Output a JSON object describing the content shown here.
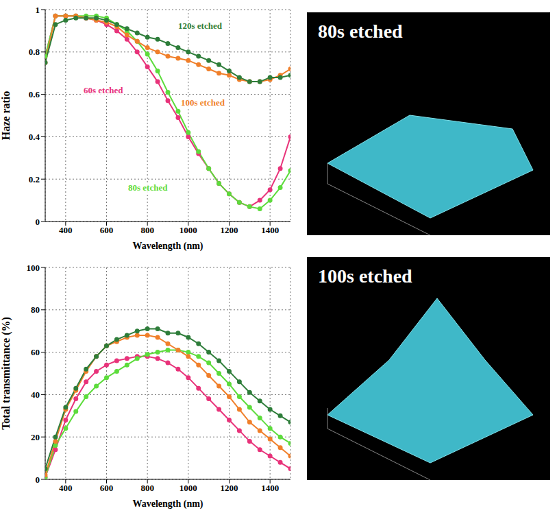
{
  "chart_data": [
    {
      "type": "line",
      "y_label": "Haze ratio",
      "x_label": "Wavelength (nm)",
      "x": [
        300,
        350,
        400,
        450,
        500,
        550,
        600,
        650,
        700,
        750,
        800,
        850,
        900,
        950,
        1000,
        1050,
        1100,
        1150,
        1200,
        1250,
        1300,
        1350,
        1400,
        1450,
        1500
      ],
      "xlim": [
        300,
        1500
      ],
      "xticks": [
        400,
        600,
        800,
        1000,
        1200,
        1400
      ],
      "ylim": [
        0,
        1
      ],
      "yticks": [
        0,
        0.2,
        0.4,
        0.6,
        0.8,
        1
      ],
      "grid": true,
      "series": [
        {
          "name": "60s etched",
          "color": "#e8337a",
          "marker": "circle",
          "values": [
            0.78,
            0.97,
            0.97,
            0.97,
            0.96,
            0.95,
            0.93,
            0.9,
            0.86,
            0.8,
            0.73,
            0.66,
            0.57,
            0.49,
            0.4,
            0.32,
            0.25,
            0.18,
            0.13,
            0.09,
            0.07,
            0.1,
            0.15,
            0.25,
            0.4
          ]
        },
        {
          "name": "80s etched",
          "color": "#5ddc3c",
          "marker": "circle",
          "values": [
            0.78,
            0.97,
            0.97,
            0.97,
            0.97,
            0.97,
            0.96,
            0.93,
            0.9,
            0.85,
            0.79,
            0.71,
            0.61,
            0.52,
            0.42,
            0.33,
            0.25,
            0.18,
            0.13,
            0.09,
            0.07,
            0.06,
            0.1,
            0.16,
            0.24
          ]
        },
        {
          "name": "100s etched",
          "color": "#f07f2a",
          "marker": "circle",
          "values": [
            0.75,
            0.97,
            0.97,
            0.97,
            0.96,
            0.95,
            0.94,
            0.92,
            0.88,
            0.85,
            0.82,
            0.8,
            0.78,
            0.77,
            0.76,
            0.74,
            0.72,
            0.7,
            0.69,
            0.67,
            0.66,
            0.66,
            0.67,
            0.69,
            0.72
          ]
        },
        {
          "name": "120s etched",
          "color": "#2e7d3a",
          "marker": "circle",
          "values": [
            0.75,
            0.93,
            0.95,
            0.96,
            0.96,
            0.96,
            0.95,
            0.93,
            0.91,
            0.89,
            0.87,
            0.86,
            0.84,
            0.82,
            0.8,
            0.78,
            0.76,
            0.74,
            0.71,
            0.68,
            0.66,
            0.66,
            0.68,
            0.68,
            0.69
          ]
        }
      ]
    },
    {
      "type": "line",
      "y_label": "Total transmittance (%)",
      "x_label": "Wavelength (nm)",
      "x": [
        300,
        350,
        400,
        450,
        500,
        550,
        600,
        650,
        700,
        750,
        800,
        850,
        900,
        950,
        1000,
        1050,
        1100,
        1150,
        1200,
        1250,
        1300,
        1350,
        1400,
        1450,
        1500
      ],
      "xlim": [
        300,
        1500
      ],
      "xticks": [
        400,
        600,
        800,
        1000,
        1200,
        1400
      ],
      "ylim": [
        0,
        100
      ],
      "yticks": [
        0,
        20,
        40,
        60,
        80,
        100
      ],
      "grid": true,
      "series": [
        {
          "color": "#e8337a",
          "marker": "circle",
          "values": [
            1,
            14,
            28,
            38,
            46,
            51,
            54,
            56,
            57,
            58,
            58,
            57,
            55,
            52,
            48,
            43,
            38,
            33,
            28,
            23,
            18,
            14,
            11,
            8,
            5
          ]
        },
        {
          "color": "#5ddc3c",
          "marker": "circle",
          "values": [
            1,
            16,
            24,
            32,
            39,
            44,
            48,
            51,
            54,
            57,
            59,
            60,
            61,
            61,
            60,
            58,
            55,
            50,
            45,
            39,
            34,
            29,
            24,
            20,
            17
          ]
        },
        {
          "color": "#f07f2a",
          "marker": "circle",
          "values": [
            2,
            18,
            33,
            42,
            51,
            58,
            63,
            65,
            67,
            68,
            68,
            67,
            64,
            61,
            58,
            54,
            49,
            44,
            39,
            33,
            27,
            23,
            19,
            15,
            11
          ]
        },
        {
          "color": "#2e7d3a",
          "marker": "circle",
          "values": [
            5,
            20,
            34,
            43,
            52,
            58,
            63,
            66,
            68,
            70,
            71,
            71,
            69,
            69,
            67,
            64,
            60,
            56,
            51,
            46,
            41,
            37,
            33,
            30,
            27
          ]
        }
      ]
    }
  ],
  "images": [
    {
      "title": "80s etched"
    },
    {
      "title": "100s etched"
    }
  ]
}
